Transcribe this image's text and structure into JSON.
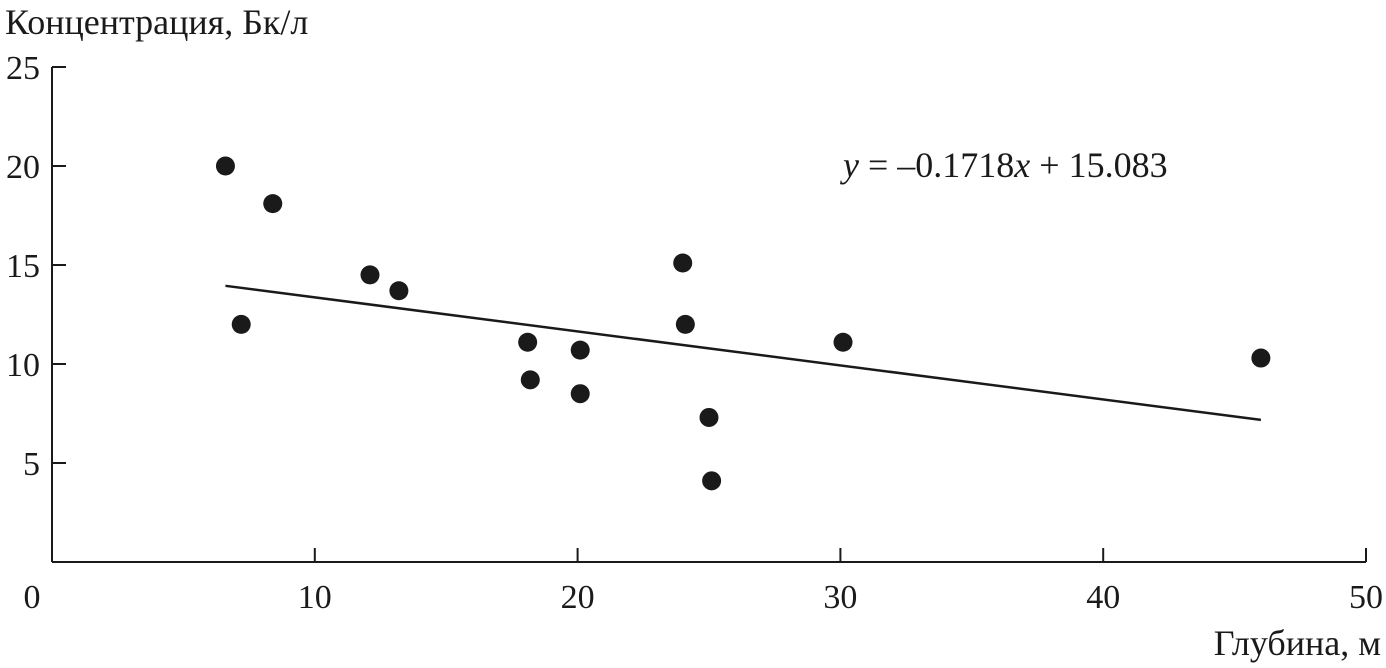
{
  "chart_data": {
    "type": "scatter",
    "title": "",
    "ylabel": "Концентрация, Бк/л",
    "xlabel": "Глубина, м",
    "xlim": [
      0,
      50
    ],
    "ylim": [
      0,
      25
    ],
    "x_ticks": [
      0,
      10,
      20,
      30,
      40,
      50
    ],
    "y_ticks": [
      5,
      10,
      15,
      20,
      25
    ],
    "grid": false,
    "points": [
      {
        "x": 6.6,
        "y": 20.0
      },
      {
        "x": 8.4,
        "y": 18.1
      },
      {
        "x": 7.2,
        "y": 12.0
      },
      {
        "x": 12.1,
        "y": 14.5
      },
      {
        "x": 13.2,
        "y": 13.7
      },
      {
        "x": 18.1,
        "y": 11.1
      },
      {
        "x": 18.2,
        "y": 9.2
      },
      {
        "x": 20.1,
        "y": 10.7
      },
      {
        "x": 20.1,
        "y": 8.5
      },
      {
        "x": 24.0,
        "y": 15.1
      },
      {
        "x": 24.1,
        "y": 12.0
      },
      {
        "x": 25.0,
        "y": 7.3
      },
      {
        "x": 25.1,
        "y": 4.1
      },
      {
        "x": 30.1,
        "y": 11.1
      },
      {
        "x": 46.0,
        "y": 10.3
      }
    ],
    "trendline": {
      "slope": -0.1718,
      "intercept": 15.083,
      "x_range": [
        6.6,
        46.0
      ],
      "equation": {
        "y_var": "y",
        "middle": " = –0.1718",
        "x_var": "x",
        "tail": " + 15.083"
      }
    }
  }
}
